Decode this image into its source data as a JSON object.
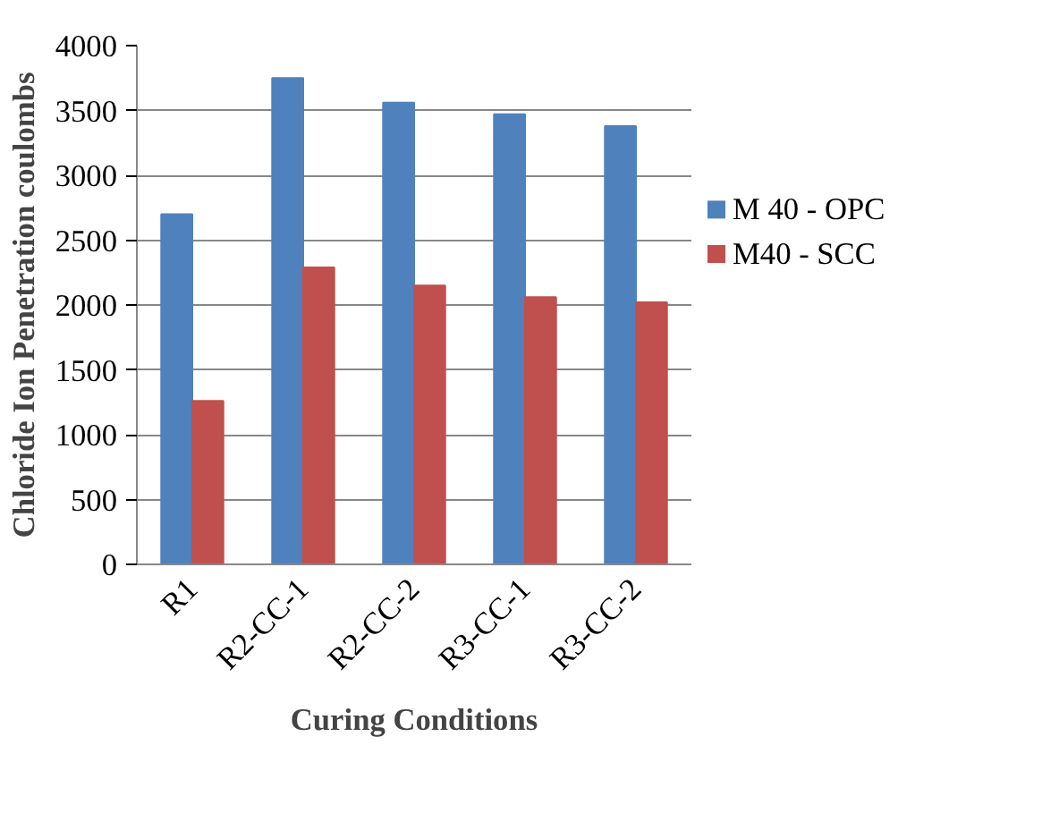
{
  "chart_data": {
    "type": "bar",
    "xlabel": "Curing Conditions",
    "ylabel": "Chloride Ion Penetration coulombs",
    "categories": [
      "R1",
      "R2-CC-1",
      "R2-CC-2",
      "R3-CC-1",
      "R3-CC-2"
    ],
    "series": [
      {
        "name": "M 40 - OPC",
        "color": "#4f81bd",
        "values": [
          2700,
          3750,
          3560,
          3470,
          3380
        ]
      },
      {
        "name": "M40 - SCC",
        "color": "#c0504d",
        "values": [
          1260,
          2290,
          2150,
          2060,
          2020
        ]
      }
    ],
    "ylim": [
      0,
      4000
    ],
    "yticks": [
      0,
      500,
      1000,
      1500,
      2000,
      2500,
      3000,
      3500,
      4000
    ],
    "grid": "y",
    "legend": "right"
  }
}
